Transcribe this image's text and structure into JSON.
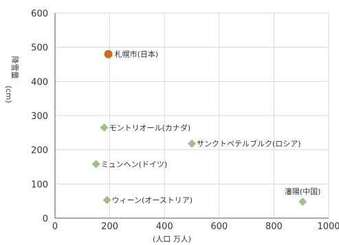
{
  "header_text": "",
  "chart_data": {
    "type": "scatter",
    "title": "",
    "xlabel": "(人口 万人)",
    "ylabel": "(cm)",
    "ylabel_main": "降雪量",
    "xlim": [
      0,
      1000
    ],
    "ylim": [
      0,
      600
    ],
    "x_ticks": [
      0,
      200,
      400,
      600,
      800,
      1000
    ],
    "y_ticks": [
      0,
      100,
      200,
      300,
      400,
      500,
      600
    ],
    "grid": true,
    "legend": "none",
    "points": [
      {
        "label": "札幌市(日本)",
        "x": 195,
        "y": 480,
        "highlight": true
      },
      {
        "label": "モントリオール(カナダ)",
        "x": 180,
        "y": 265,
        "highlight": false
      },
      {
        "label": "サンクトペテルブルク(ロシア)",
        "x": 500,
        "y": 218,
        "highlight": false
      },
      {
        "label": "ミュンヘン(ドイツ)",
        "x": 150,
        "y": 158,
        "highlight": false
      },
      {
        "label": "ウィーン(オーストリア)",
        "x": 190,
        "y": 53,
        "highlight": false
      },
      {
        "label": "瀋陽(中国)",
        "x": 905,
        "y": 48,
        "highlight": false
      }
    ],
    "colors": {
      "highlight": "#d2691e",
      "normal": "#9cc18a",
      "grid": "#d9d9d9",
      "axis": "#555555"
    }
  }
}
